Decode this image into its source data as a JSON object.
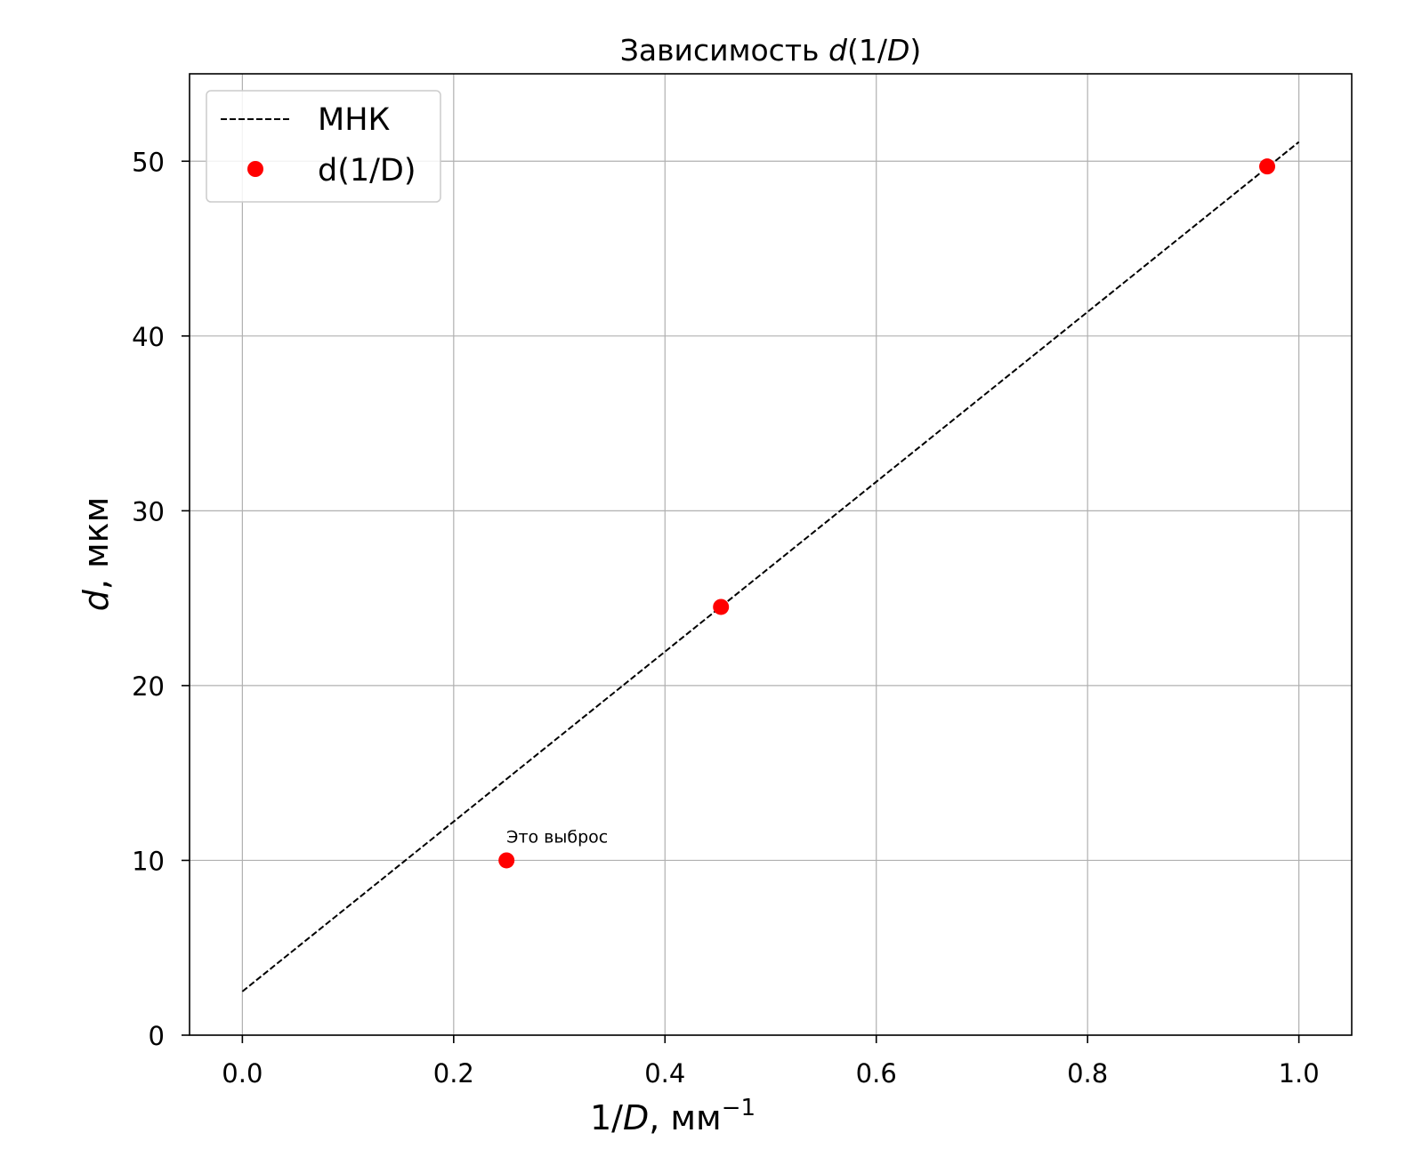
{
  "chart_data": {
    "type": "scatter",
    "title_prefix": "Зависимость ",
    "title_var": "d",
    "title_paren_open": "(1/",
    "title_var2": "D",
    "title_paren_close": ")",
    "xlabel_prefix": "1/",
    "xlabel_var": "D",
    "xlabel_unit": ", мм",
    "xlabel_exp": "−1",
    "ylabel_var": "d",
    "ylabel_unit": ", мкм",
    "xlim": [
      -0.05,
      1.05
    ],
    "ylim": [
      0,
      55
    ],
    "xticks": [
      0.0,
      0.2,
      0.4,
      0.6,
      0.8,
      1.0
    ],
    "xtick_labels": [
      "0.0",
      "0.2",
      "0.4",
      "0.6",
      "0.8",
      "1.0"
    ],
    "yticks": [
      0,
      10,
      20,
      30,
      40,
      50
    ],
    "ytick_labels": [
      "0",
      "10",
      "20",
      "30",
      "40",
      "50"
    ],
    "grid": true,
    "legend_position": "top-left",
    "series": [
      {
        "name": "МНК",
        "kind": "line",
        "style": "dashed",
        "color": "#000000",
        "x": [
          0.0,
          1.0
        ],
        "y": [
          2.5,
          51.1
        ]
      },
      {
        "name": "d(1/D)",
        "kind": "scatter",
        "color": "#ff0000",
        "x": [
          0.25,
          0.453,
          0.97
        ],
        "y": [
          10.0,
          24.5,
          49.7
        ]
      }
    ],
    "annotations": [
      {
        "text": "Это выброс",
        "x": 0.25,
        "y": 10.0
      }
    ]
  }
}
